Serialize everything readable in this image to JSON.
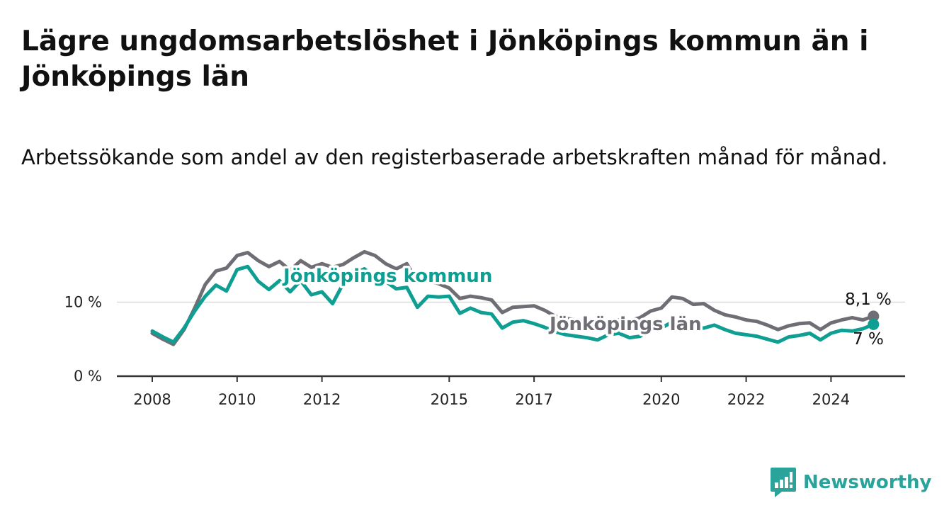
{
  "title": "Lägre ungdomsarbetslöshet i Jönköpings kommun än i Jönköpings län",
  "subtitle": "Arbetssökande som andel av den registerbaserade arbetskraften månad för månad.",
  "brand": {
    "name": "Newsworthy",
    "icon": "newsworthy-logo-icon"
  },
  "colors": {
    "kommun": "#0f9e92",
    "lan": "#6f6e75",
    "grid": "#d9d9d9",
    "axis": "#333333",
    "brand": "#2aa39a"
  },
  "chart_data": {
    "type": "line",
    "title": "Lägre ungdomsarbetslöshet i Jönköpings kommun än i Jönköpings län",
    "subtitle": "Arbetssökande som andel av den registerbaserade arbetskraften månad för månad.",
    "xlabel": "",
    "ylabel": "",
    "x_ticks": [
      "2008",
      "2010",
      "2012",
      "2015",
      "2017",
      "2020",
      "2022",
      "2024"
    ],
    "y_ticks": [
      "0 %",
      "10 %"
    ],
    "ylim": [
      0,
      18
    ],
    "xlim": [
      "2007-06",
      "2025-12"
    ],
    "grid": "horizontal",
    "legend": "direct labels on lines",
    "series": [
      {
        "name": "Jönköpings kommun",
        "key": "kommun",
        "end_label": "7 %",
        "x": [
          "2008-01",
          "2008-04",
          "2008-07",
          "2008-10",
          "2009-01",
          "2009-04",
          "2009-07",
          "2009-10",
          "2010-01",
          "2010-04",
          "2010-07",
          "2010-10",
          "2011-01",
          "2011-04",
          "2011-07",
          "2011-10",
          "2012-01",
          "2012-04",
          "2012-07",
          "2012-10",
          "2013-01",
          "2013-04",
          "2013-07",
          "2013-10",
          "2014-01",
          "2014-04",
          "2014-07",
          "2014-10",
          "2015-01",
          "2015-04",
          "2015-07",
          "2015-10",
          "2016-01",
          "2016-04",
          "2016-07",
          "2016-10",
          "2017-01",
          "2017-04",
          "2017-07",
          "2017-10",
          "2018-01",
          "2018-04",
          "2018-07",
          "2018-10",
          "2019-01",
          "2019-04",
          "2019-07",
          "2019-10",
          "2020-01",
          "2020-04",
          "2020-07",
          "2020-10",
          "2021-01",
          "2021-04",
          "2021-07",
          "2021-10",
          "2022-01",
          "2022-04",
          "2022-07",
          "2022-10",
          "2023-01",
          "2023-04",
          "2023-07",
          "2023-10",
          "2024-01",
          "2024-04",
          "2024-07",
          "2024-10",
          "2025-01"
        ],
        "values": [
          6.1,
          5.3,
          4.6,
          6.5,
          8.8,
          10.8,
          12.3,
          11.5,
          14.4,
          14.8,
          12.8,
          11.7,
          12.9,
          11.4,
          12.9,
          11.0,
          11.4,
          9.8,
          12.5,
          13.8,
          14.5,
          13.3,
          12.8,
          11.8,
          12.0,
          9.3,
          10.8,
          10.7,
          10.8,
          8.5,
          9.2,
          8.6,
          8.4,
          6.5,
          7.3,
          7.5,
          7.1,
          6.6,
          6.0,
          5.6,
          5.4,
          5.2,
          4.9,
          5.6,
          5.8,
          5.2,
          5.4,
          6.2,
          6.5,
          7.3,
          7.1,
          6.7,
          6.5,
          6.9,
          6.3,
          5.8,
          5.6,
          5.4,
          5.0,
          4.6,
          5.3,
          5.5,
          5.8,
          4.9,
          5.8,
          6.2,
          6.1,
          6.4,
          7.0
        ]
      },
      {
        "name": "Jönköpings län",
        "key": "lan",
        "end_label": "8,1 %",
        "x": [
          "2008-01",
          "2008-04",
          "2008-07",
          "2008-10",
          "2009-01",
          "2009-04",
          "2009-07",
          "2009-10",
          "2010-01",
          "2010-04",
          "2010-07",
          "2010-10",
          "2011-01",
          "2011-04",
          "2011-07",
          "2011-10",
          "2012-01",
          "2012-04",
          "2012-07",
          "2012-10",
          "2013-01",
          "2013-04",
          "2013-07",
          "2013-10",
          "2014-01",
          "2014-04",
          "2014-07",
          "2014-10",
          "2015-01",
          "2015-04",
          "2015-07",
          "2015-10",
          "2016-01",
          "2016-04",
          "2016-07",
          "2016-10",
          "2017-01",
          "2017-04",
          "2017-07",
          "2017-10",
          "2018-01",
          "2018-04",
          "2018-07",
          "2018-10",
          "2019-01",
          "2019-04",
          "2019-07",
          "2019-10",
          "2020-01",
          "2020-04",
          "2020-07",
          "2020-10",
          "2021-01",
          "2021-04",
          "2021-07",
          "2021-10",
          "2022-01",
          "2022-04",
          "2022-07",
          "2022-10",
          "2023-01",
          "2023-04",
          "2023-07",
          "2023-10",
          "2024-01",
          "2024-04",
          "2024-07",
          "2024-10",
          "2025-01"
        ],
        "values": [
          5.8,
          5.0,
          4.3,
          6.3,
          9.2,
          12.4,
          14.2,
          14.6,
          16.3,
          16.7,
          15.6,
          14.8,
          15.5,
          14.3,
          15.6,
          14.7,
          15.2,
          14.7,
          15.1,
          16.0,
          16.8,
          16.3,
          15.2,
          14.5,
          15.2,
          12.7,
          12.9,
          12.5,
          11.9,
          10.5,
          10.8,
          10.6,
          10.3,
          8.6,
          9.3,
          9.4,
          9.5,
          8.9,
          8.1,
          7.8,
          7.6,
          7.3,
          7.0,
          7.4,
          7.6,
          7.5,
          7.9,
          8.8,
          9.2,
          10.7,
          10.5,
          9.7,
          9.8,
          8.9,
          8.3,
          8.0,
          7.6,
          7.4,
          6.9,
          6.3,
          6.8,
          7.1,
          7.2,
          6.3,
          7.2,
          7.6,
          7.9,
          7.6,
          8.1
        ]
      }
    ]
  }
}
